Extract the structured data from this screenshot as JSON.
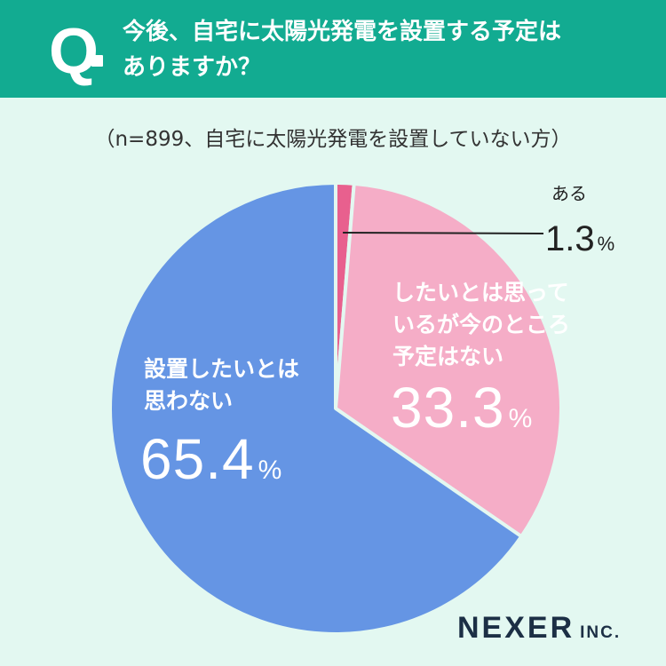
{
  "header": {
    "q_letter": "Q",
    "question_line1": "今後、自宅に太陽光発電を設置する予定は",
    "question_line2": "ありますか？"
  },
  "sample_note": "（n=899、自宅に太陽光発電を設置していない方）",
  "chart_data": {
    "type": "pie",
    "title": "今後、自宅に太陽光発電を設置する予定はありますか？",
    "start_angle_deg": 0,
    "direction": "clockwise",
    "slices": [
      {
        "label_lines": [
          "ある"
        ],
        "value": 1.3,
        "value_text": "1.3",
        "color": "#e8608e"
      },
      {
        "label_lines": [
          "したいとは思って",
          "いるが今のところ",
          "予定はない"
        ],
        "value": 33.3,
        "value_text": "33.3",
        "color": "#f5adc7"
      },
      {
        "label_lines": [
          "設置したいとは",
          "思わない"
        ],
        "value": 65.4,
        "value_text": "65.4",
        "color": "#6595e4"
      }
    ],
    "percent_unit": "%"
  },
  "brand": {
    "name": "NEXER",
    "suffix": "INC."
  }
}
